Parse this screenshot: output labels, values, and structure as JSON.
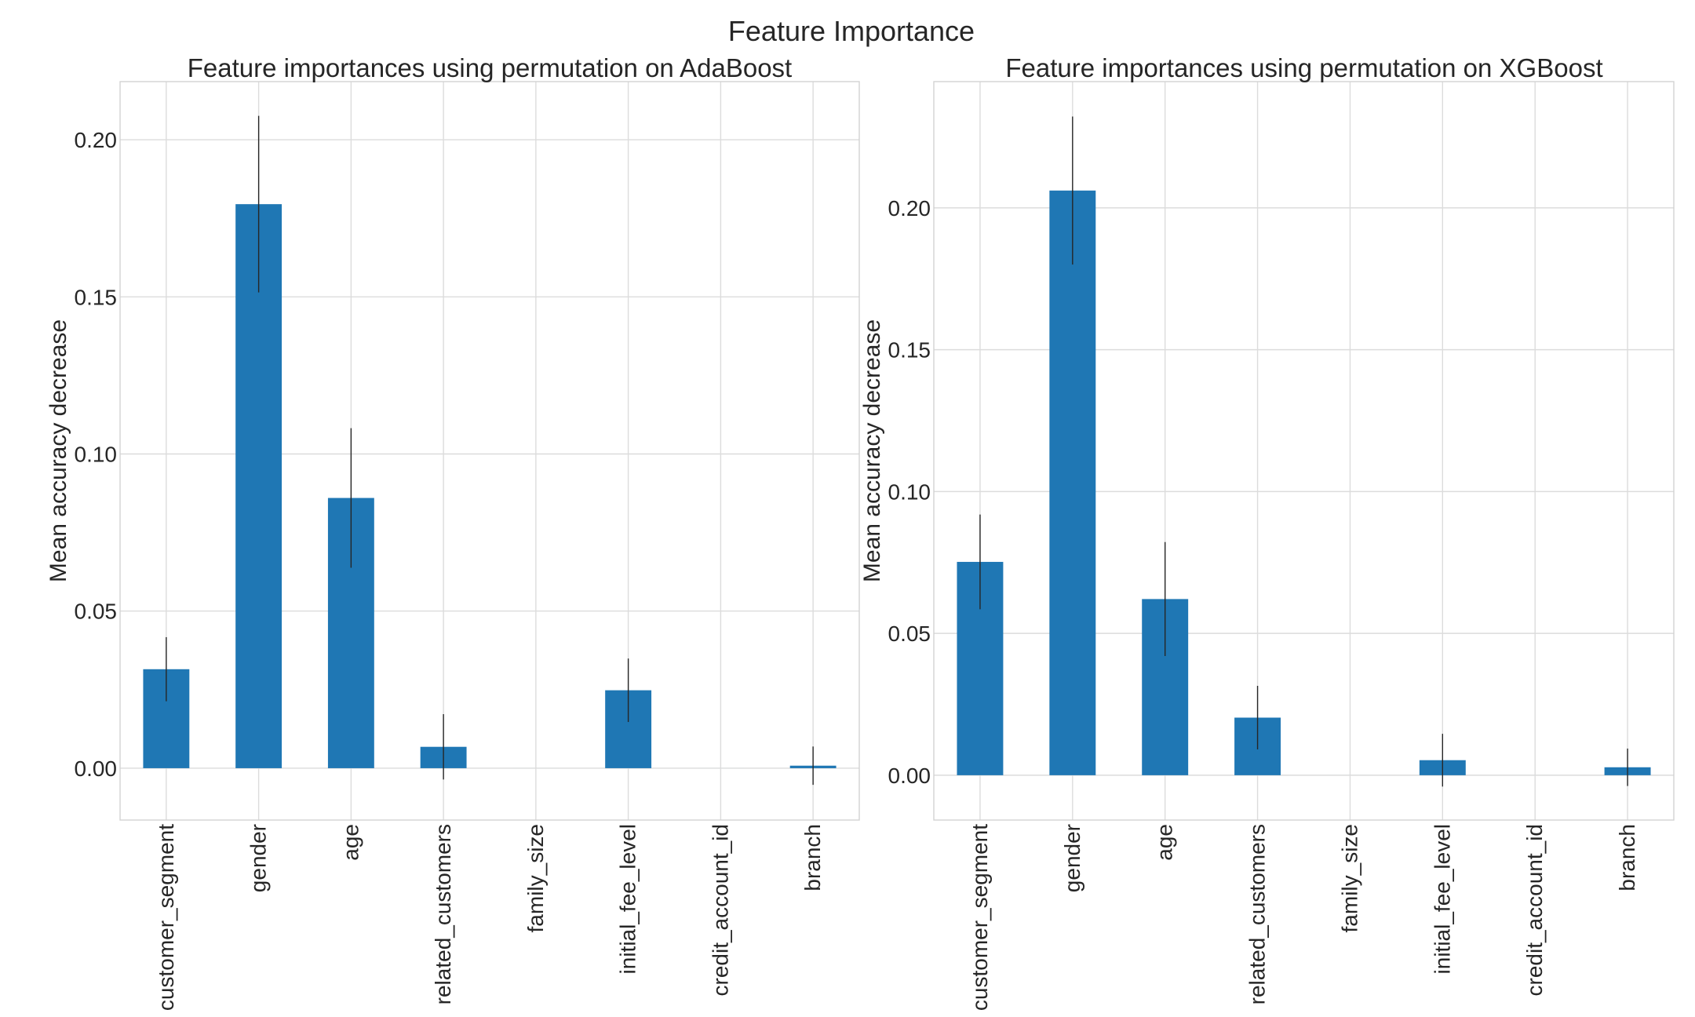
{
  "figure": {
    "suptitle": "Feature Importance"
  },
  "chart_data": [
    {
      "type": "bar",
      "title": "Feature importances using permutation on AdaBoost",
      "xlabel": "",
      "ylabel": "Mean accuracy decrease",
      "categories": [
        "customer_segment",
        "gender",
        "age",
        "related_customers",
        "family_size",
        "initial_fee_level",
        "credit_account_id",
        "branch"
      ],
      "values": [
        0.0315,
        0.1795,
        0.086,
        0.0068,
        0.0,
        0.0248,
        0.0,
        0.0008
      ],
      "errors": [
        0.0102,
        0.0281,
        0.0222,
        0.0104,
        0.0,
        0.0101,
        0.0,
        0.0061
      ],
      "ylim": [
        -0.0165,
        0.2185
      ],
      "yticks": [
        0.0,
        0.05,
        0.1,
        0.15,
        0.2
      ],
      "ytick_labels": [
        "0.00",
        "0.05",
        "0.10",
        "0.15",
        "0.20"
      ],
      "grid": true,
      "color": "#1f77b4"
    },
    {
      "type": "bar",
      "title": "Feature importances using permutation on XGBoost",
      "xlabel": "",
      "ylabel": "Mean accuracy decrease",
      "categories": [
        "customer_segment",
        "gender",
        "age",
        "related_customers",
        "family_size",
        "initial_fee_level",
        "credit_account_id",
        "branch"
      ],
      "values": [
        0.0752,
        0.2061,
        0.0621,
        0.0203,
        0.0,
        0.0053,
        0.0,
        0.0028
      ],
      "errors": [
        0.0167,
        0.0261,
        0.0201,
        0.0112,
        0.0,
        0.0093,
        0.0,
        0.0066
      ],
      "ylim": [
        -0.0158,
        0.2445
      ],
      "yticks": [
        0.0,
        0.05,
        0.1,
        0.15,
        0.2
      ],
      "ytick_labels": [
        "0.00",
        "0.05",
        "0.10",
        "0.15",
        "0.20"
      ],
      "grid": true,
      "color": "#1f77b4"
    }
  ]
}
